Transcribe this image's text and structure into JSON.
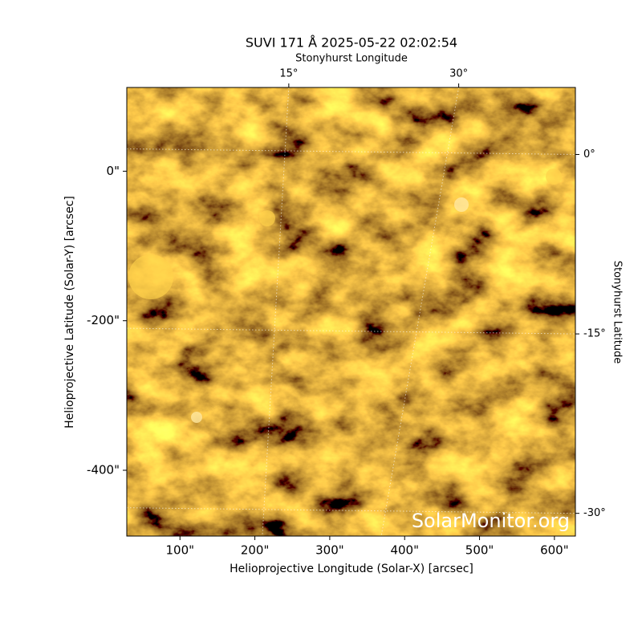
{
  "chart_data": {
    "type": "image",
    "title": "SUVI 171 Å 2025-05-22 02:02:54",
    "xlabel": "Helioprojective Longitude (Solar-X) [arcsec]",
    "ylabel": "Helioprojective Latitude (Solar-Y) [arcsec]",
    "x2label": "Stonyhurst Longitude",
    "y2label": "Stonyhurst Latitude",
    "watermark": "SolarMonitor.org",
    "xlim": [
      29,
      628
    ],
    "ylim": [
      -488,
      112
    ],
    "xticks": [
      {
        "value": 100,
        "label": "100\""
      },
      {
        "value": 200,
        "label": "200\""
      },
      {
        "value": 300,
        "label": "300\""
      },
      {
        "value": 400,
        "label": "400\""
      },
      {
        "value": 500,
        "label": "500\""
      },
      {
        "value": 600,
        "label": "600\""
      }
    ],
    "yticks": [
      {
        "value": 0,
        "label": "0\""
      },
      {
        "value": -200,
        "label": "-200\""
      },
      {
        "value": -400,
        "label": "-400\""
      }
    ],
    "x2lim": [
      0.7,
      40.3
    ],
    "x2ticks": [
      {
        "value": 15,
        "label": "15°"
      },
      {
        "value": 30,
        "label": "30°"
      }
    ],
    "y2lim": [
      -31.9,
      5.6
    ],
    "y2ticks": [
      {
        "value": 0,
        "label": "0°"
      },
      {
        "value": -15,
        "label": "-15°"
      },
      {
        "value": -30,
        "label": "-30°"
      }
    ],
    "grid": true
  }
}
